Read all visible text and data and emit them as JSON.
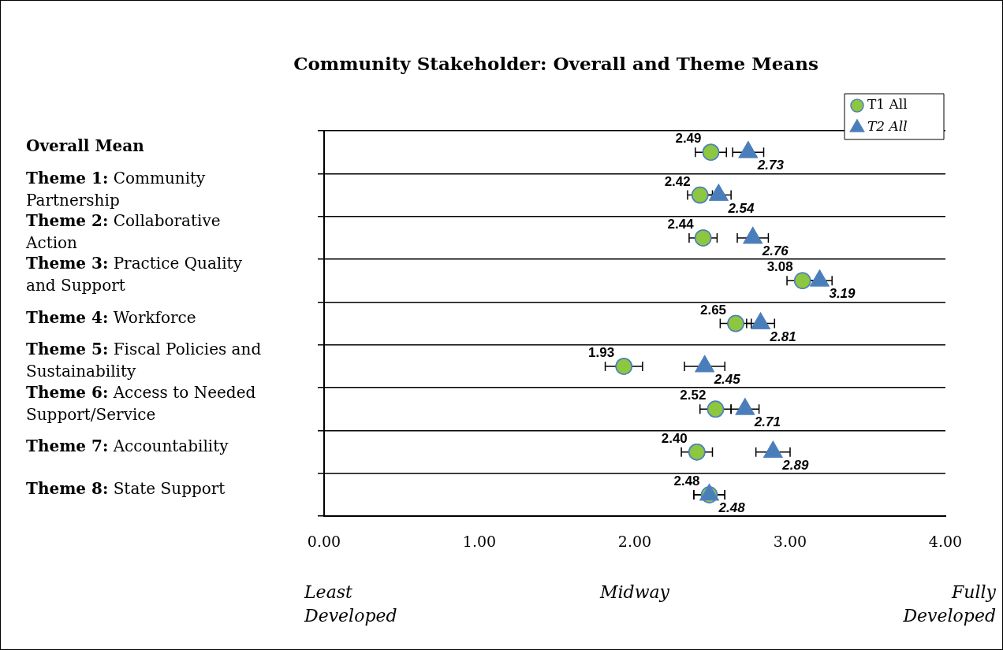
{
  "chart_data": {
    "type": "scatter",
    "title": "Community Stakeholder: Overall and Theme Means",
    "orientation": "horizontal",
    "categories": [
      "Overall Mean",
      "Theme 1: Community Partnership",
      "Theme 2: Collaborative Action",
      "Theme 3:  Practice Quality and Support",
      "Theme 4: Workforce",
      "Theme 5: Fiscal Policies and Sustainability",
      "Theme 6: Access to Needed Support/Service",
      "Theme 7: Accountability",
      "Theme 8: State Support"
    ],
    "series": [
      {
        "name": "T1 All",
        "color": "#8dc63f",
        "marker": "circle",
        "values": [
          2.49,
          2.42,
          2.44,
          3.08,
          2.65,
          1.93,
          2.52,
          2.4,
          2.48
        ],
        "value_labels": [
          "2.49",
          "2.42",
          "2.44",
          "3.08",
          "2.65",
          "1.93",
          "2.52",
          "2.40",
          "2.48"
        ],
        "errors": [
          0.1,
          0.08,
          0.09,
          0.1,
          0.1,
          0.12,
          0.1,
          0.1,
          0.1
        ]
      },
      {
        "name": "T2 All",
        "color": "#4a7ebb",
        "marker": "triangle",
        "values": [
          2.73,
          2.54,
          2.76,
          3.19,
          2.81,
          2.45,
          2.71,
          2.89,
          2.48
        ],
        "value_labels": [
          "2.73",
          "2.54",
          "2.76",
          "3.19",
          "2.81",
          "2.45",
          "2.71",
          "2.89",
          "2.48"
        ],
        "errors": [
          0.1,
          0.08,
          0.1,
          0.08,
          0.09,
          0.13,
          0.09,
          0.11,
          0.1
        ]
      }
    ],
    "xlim": [
      0,
      4
    ],
    "xticks": [
      {
        "value": 0,
        "label": "0.00"
      },
      {
        "value": 1,
        "label": "1.00"
      },
      {
        "value": 2,
        "label": "2.00"
      },
      {
        "value": 3,
        "label": "3.00"
      },
      {
        "value": 4,
        "label": "4.00"
      }
    ],
    "grid": "y",
    "legend": "top right",
    "annotations": [
      "Least Developed",
      "Midway",
      "Fully Developed"
    ]
  }
}
